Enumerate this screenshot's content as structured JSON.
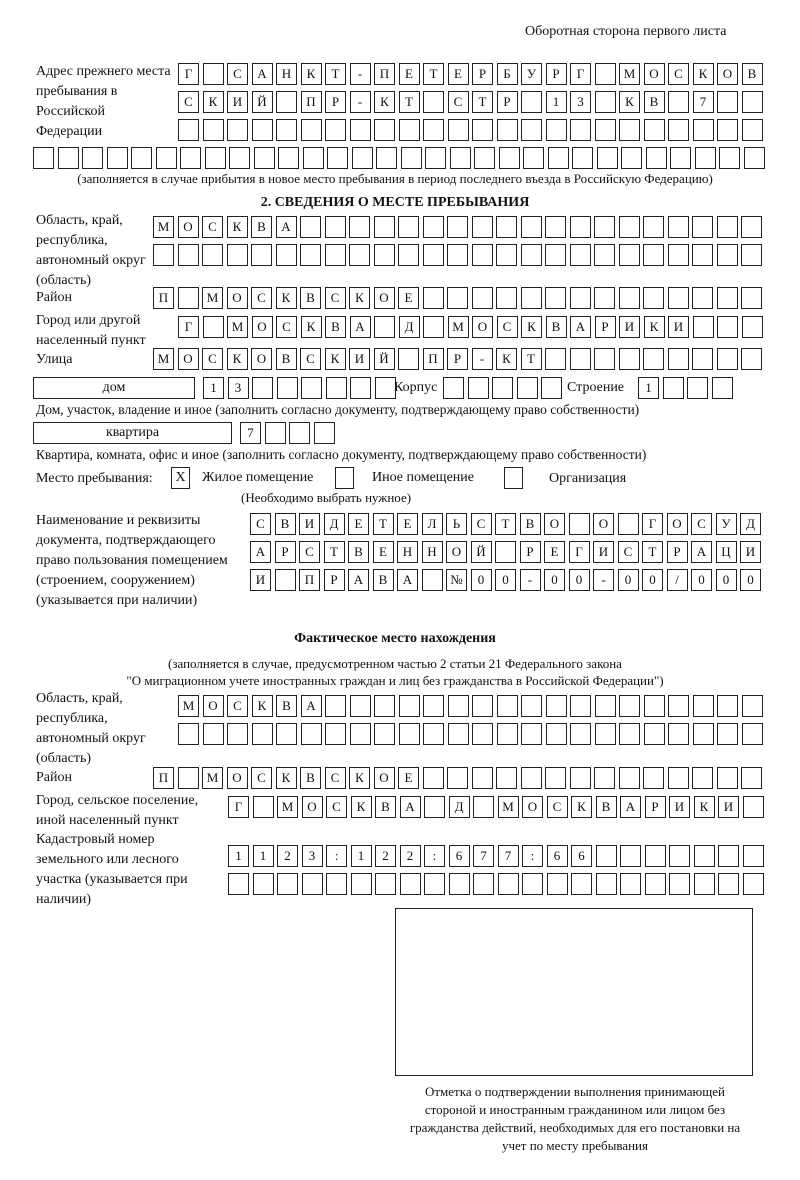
{
  "header": "Оборотная сторона первого листа",
  "prev_address": {
    "label": "Адрес прежнего места пребывания в Российской Федерации",
    "rows": [
      "Г САНКТ-ПЕТЕРБУРГ МОСКОВ",
      "СКИЙ ПР-КТ СТР 13 КВ 7  ",
      "                        ",
      "                              "
    ],
    "note": "(заполняется в случае прибытия в новое место пребывания в период последнего въезда в Российскую Федерацию)"
  },
  "section2": {
    "title": "2. СВЕДЕНИЯ О МЕСТЕ ПРЕБЫВАНИЯ",
    "region_label": "Область, край, республика, автономный округ (область)",
    "region_rows": [
      "МОСКВА                   ",
      "                         "
    ],
    "district_label": "Район",
    "district": "П МОСКВСКОЕ              ",
    "city_label": "Город или другой населенный пункт",
    "city": "Г МОСКВА Д МОСКВАРИКИ   ",
    "street_label": "Улица",
    "street": "МОСКОВСКИЙ ПР-КТ         ",
    "house_type": "дом",
    "house": "13      ",
    "korpus_label": "Корпус",
    "korpus": "     ",
    "building_label": "Строение",
    "building": "1   ",
    "house_note": "Дом, участок, владение и иное (заполнить согласно документу, подтверждающему право собственности)",
    "flat_type": "квартира",
    "flat": "7   ",
    "flat_note": "Квартира, комната, офис и иное (заполнить согласно документу, подтверждающему право собственности)",
    "stay_label": "Место пребывания:",
    "options": [
      {
        "label": "Жилое помещение",
        "mark": "X"
      },
      {
        "label": "Иное помещение",
        "mark": ""
      },
      {
        "label": "Организация",
        "mark": ""
      }
    ],
    "choose_note": "(Необходимо выбрать нужное)",
    "doc_label": "Наименование и реквизиты документа, подтверждающего право пользования помещением (строением, сооружением) (указывается при наличии)",
    "doc_rows": [
      "СВИДЕТЕЛЬСТВО О ГОСУД",
      "АРСТВЕННОЙ РЕГИСТРАЦИ",
      "И ПРАВА №00-00-00/000"
    ]
  },
  "actual": {
    "title": "Фактическое место нахождения",
    "note1": "(заполняется в случае, предусмотренном частью 2 статьи 21 Федерального закона",
    "note2": "\"О миграционном учете иностранных граждан и лиц без гражданства в Российской Федерации\")",
    "region_label": "Область, край, республика, автономный округ (область)",
    "region_rows": [
      "МОСКВА                  ",
      "                        "
    ],
    "district_label": "Район",
    "district": "П МОСКВСКОЕ              ",
    "city_label": "Город, сельское поселение, иной населенный пункт",
    "city": "Г МОСКВА Д МОСКВАРИКИ ",
    "cadastre_label": "Кадастровый номер земельного или лесного участка (указывается при наличии)",
    "cadastre_rows": [
      "1123:122:677:66       ",
      "                      "
    ]
  },
  "stamp": {
    "caption": "Отметка о подтверждении выполнения принимающей стороной и иностранным гражданином или лицом без гражданства действий, необходимых для его постановки на учет по месту пребывания"
  }
}
